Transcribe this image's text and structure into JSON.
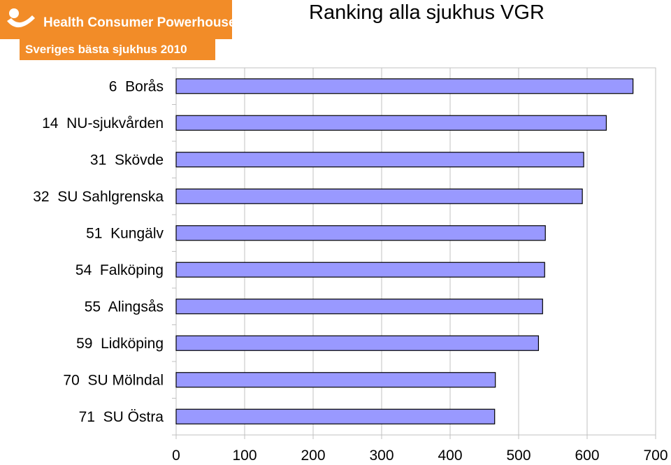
{
  "logo": {
    "name": "Health Consumer Powerhouse",
    "subtitle": "Sveriges bästa sjukhus 2010",
    "brand_color": "#f28c28"
  },
  "colors": {
    "bar_fill": "#9999ff",
    "bar_stroke": "#000000",
    "grid": "#c0c0c0"
  },
  "chart_data": {
    "type": "bar",
    "orientation": "horizontal",
    "title": "Ranking alla sjukhus VGR",
    "categories": [
      "6  Borås",
      "14  NU-sjukvården",
      "31  Skövde",
      "32  SU Sahlgrenska",
      "51  Kungälv",
      "54  Falköping",
      "55  Alingsås",
      "59  Lidköping",
      "70  SU Mölndal",
      "71  SU Östra"
    ],
    "values": [
      667,
      628,
      595,
      593,
      539,
      538,
      535,
      529,
      466,
      465
    ],
    "xlim": [
      0,
      700
    ],
    "xticks": [
      "0",
      "100",
      "200",
      "300",
      "400",
      "500",
      "600",
      "700"
    ],
    "grid": true,
    "legend": false
  }
}
